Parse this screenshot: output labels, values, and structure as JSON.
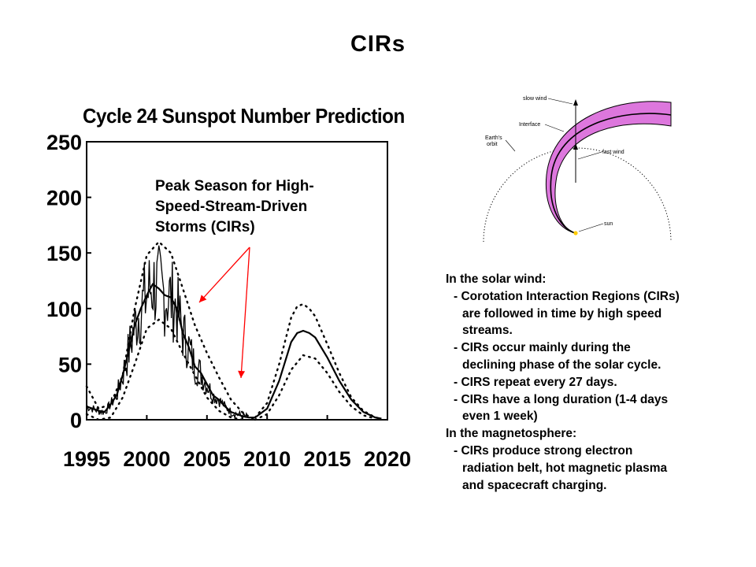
{
  "slide": {
    "title": "CIRs"
  },
  "chart_data": {
    "type": "line",
    "title": "Cycle 24 Sunspot Number Prediction",
    "xlim": [
      1995,
      2020
    ],
    "ylim": [
      0,
      250
    ],
    "x_ticks": [
      "1995",
      "2000",
      "2005",
      "2010",
      "2015",
      "2020"
    ],
    "y_ticks": [
      "0",
      "50",
      "100",
      "150",
      "200",
      "250"
    ],
    "series": [
      {
        "style": "solid",
        "x": [
          1995.0,
          1995.5,
          1996.0,
          1996.5,
          1997.0,
          1997.5,
          1998.0,
          1998.5,
          1999.0,
          1999.5,
          2000.0,
          2000.5,
          2001.0,
          2001.5,
          2002.0,
          2002.5,
          2003.0,
          2003.5,
          2004.0,
          2004.5,
          2005.0,
          2005.5,
          2006.0,
          2006.5,
          2007.0,
          2007.5,
          2008.0,
          2008.5,
          2009.0
        ],
        "y": [
          12,
          10,
          8,
          7,
          14,
          22,
          40,
          62,
          85,
          100,
          112,
          122,
          118,
          112,
          110,
          100,
          78,
          65,
          48,
          42,
          32,
          22,
          18,
          12,
          7,
          5,
          3,
          2,
          2
        ]
      },
      {
        "style": "dotted",
        "x": [
          1995.0,
          1996.0,
          1997.0,
          1998.0,
          1999.0,
          2000.0,
          2001.0,
          2002.0,
          2003.0,
          2004.0,
          2005.0,
          2006.0,
          2007.0,
          2008.0,
          2009.0
        ],
        "y": [
          30,
          10,
          14,
          40,
          100,
          148,
          160,
          150,
          118,
          85,
          60,
          38,
          18,
          6,
          0
        ]
      },
      {
        "style": "dotted",
        "x": [
          1995.0,
          1996.0,
          1997.0,
          1998.0,
          1999.0,
          2000.0,
          2001.0,
          2002.0,
          2003.0,
          2004.0,
          2005.0,
          2006.0,
          2007.0,
          2008.0
        ],
        "y": [
          5,
          0,
          2,
          20,
          50,
          82,
          90,
          82,
          60,
          40,
          20,
          8,
          2,
          0
        ]
      },
      {
        "style": "solid",
        "x": [
          2009,
          2010,
          2011,
          2012,
          2012.5,
          2013,
          2013.5,
          2014,
          2015,
          2016,
          2017,
          2018,
          2019,
          2019.5
        ],
        "y": [
          2,
          10,
          35,
          70,
          78,
          80,
          78,
          74,
          56,
          35,
          18,
          7,
          2,
          1
        ]
      },
      {
        "style": "dotted",
        "x": [
          2009,
          2010,
          2011,
          2012,
          2012.5,
          2013,
          2013.5,
          2014,
          2015,
          2016,
          2017,
          2018,
          2019,
          2019.5
        ],
        "y": [
          2,
          15,
          50,
          92,
          102,
          104,
          100,
          93,
          68,
          42,
          20,
          8,
          2,
          1
        ]
      },
      {
        "style": "dotted",
        "x": [
          2009,
          2010,
          2011,
          2012,
          2013,
          2014,
          2015,
          2016,
          2017,
          2018,
          2019
        ],
        "y": [
          0,
          5,
          22,
          45,
          58,
          55,
          42,
          25,
          12,
          4,
          1
        ]
      }
    ],
    "annotation": {
      "line1": "Peak Season for High-",
      "line2": "Speed-Stream-Driven",
      "line3": "Storms (CIRs)",
      "arrow_color": "#ff0000"
    }
  },
  "diagram": {
    "labels": {
      "slow_wind": "slow wind",
      "interface": "Interface",
      "earth_orbit_1": "Earth's",
      "earth_orbit_2": "orbit",
      "fast_wind": "fast wind",
      "sun": "sun"
    },
    "band_color": "#dd77dd",
    "sun_color": "#ffcc00"
  },
  "notes": {
    "line1": "In the solar wind:",
    "line2": "- Corotation Interaction Regions (CIRs)",
    "line3": "are followed in time by high speed",
    "line4": "streams.",
    "line5": "- CIRs occur mainly during the",
    "line6": "declining phase of the solar cycle.",
    "line7": "- CIRS repeat every 27 days.",
    "line8": "- CIRs have a long duration (1-4 days",
    "line9": "even 1 week)",
    "line10": "In the magnetosphere:",
    "line11": "- CIRs produce strong electron",
    "line12": "radiation belt, hot magnetic plasma",
    "line13": "and spacecraft charging."
  }
}
